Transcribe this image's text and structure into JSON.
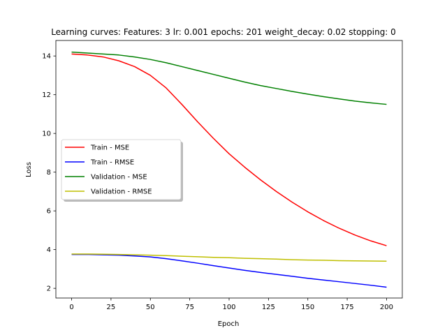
{
  "chart_data": {
    "type": "line",
    "title": "Learning curves: Features: 3 lr: 0.001 epochs: 201 weight_decay: 0.02 stopping: 0",
    "xlabel": "Epoch",
    "ylabel": "Loss",
    "xlim": [
      -10,
      210
    ],
    "ylim": [
      1.5,
      14.8
    ],
    "xticks": [
      0,
      25,
      50,
      75,
      100,
      125,
      150,
      175,
      200
    ],
    "yticks": [
      2,
      4,
      6,
      8,
      10,
      12,
      14
    ],
    "grid": false,
    "legend_position": "center-left",
    "x": [
      0,
      10,
      20,
      30,
      40,
      50,
      60,
      70,
      80,
      90,
      100,
      110,
      120,
      130,
      140,
      150,
      160,
      170,
      180,
      190,
      200
    ],
    "series": [
      {
        "name": "Train - MSE",
        "color": "#ff0000",
        "values": [
          14.1,
          14.05,
          13.95,
          13.75,
          13.45,
          13.0,
          12.35,
          11.5,
          10.6,
          9.75,
          8.95,
          8.25,
          7.6,
          7.0,
          6.45,
          5.95,
          5.5,
          5.1,
          4.75,
          4.45,
          4.2
        ]
      },
      {
        "name": "Train - RMSE",
        "color": "#0000ff",
        "values": [
          3.75,
          3.75,
          3.73,
          3.71,
          3.67,
          3.62,
          3.53,
          3.42,
          3.3,
          3.17,
          3.05,
          2.93,
          2.82,
          2.72,
          2.62,
          2.52,
          2.43,
          2.34,
          2.25,
          2.16,
          2.06
        ]
      },
      {
        "name": "Validation - MSE",
        "color": "#008000",
        "values": [
          14.2,
          14.15,
          14.1,
          14.05,
          13.95,
          13.82,
          13.65,
          13.45,
          13.25,
          13.05,
          12.85,
          12.65,
          12.47,
          12.32,
          12.17,
          12.03,
          11.9,
          11.78,
          11.67,
          11.58,
          11.5
        ]
      },
      {
        "name": "Validation - RMSE",
        "color": "#bfbf00",
        "values": [
          3.77,
          3.77,
          3.76,
          3.75,
          3.73,
          3.71,
          3.69,
          3.66,
          3.63,
          3.6,
          3.58,
          3.55,
          3.53,
          3.51,
          3.48,
          3.46,
          3.45,
          3.43,
          3.42,
          3.41,
          3.4
        ]
      }
    ]
  }
}
